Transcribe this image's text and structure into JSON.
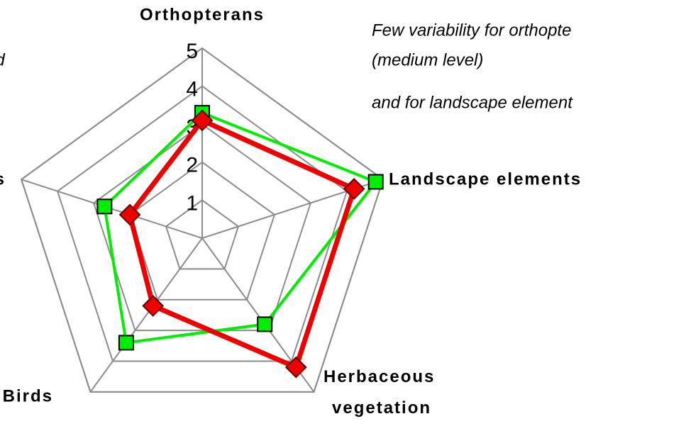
{
  "chart_data": {
    "type": "radar",
    "categories": [
      "Orthopterans",
      "Landscape elements",
      "Herbaceous vegetation",
      "Birds",
      "s"
    ],
    "series": [
      {
        "color": "#00ee00",
        "marker_edge": "#000000",
        "marker": "square",
        "values": [
          3.3,
          4.8,
          2.8,
          3.4,
          2.7
        ]
      },
      {
        "color": "#ee0000",
        "marker_edge": "#660000",
        "marker": "diamond",
        "values": [
          3.1,
          4.2,
          4.2,
          2.2,
          2.0
        ]
      }
    ],
    "rlim": [
      0,
      5
    ],
    "rticks": [
      1,
      2,
      3,
      4,
      5
    ],
    "grid": true,
    "annotations": [
      "ed",
      "Few variability  for orthopte",
      "(medium level)",
      "and  for landscape element"
    ]
  }
}
